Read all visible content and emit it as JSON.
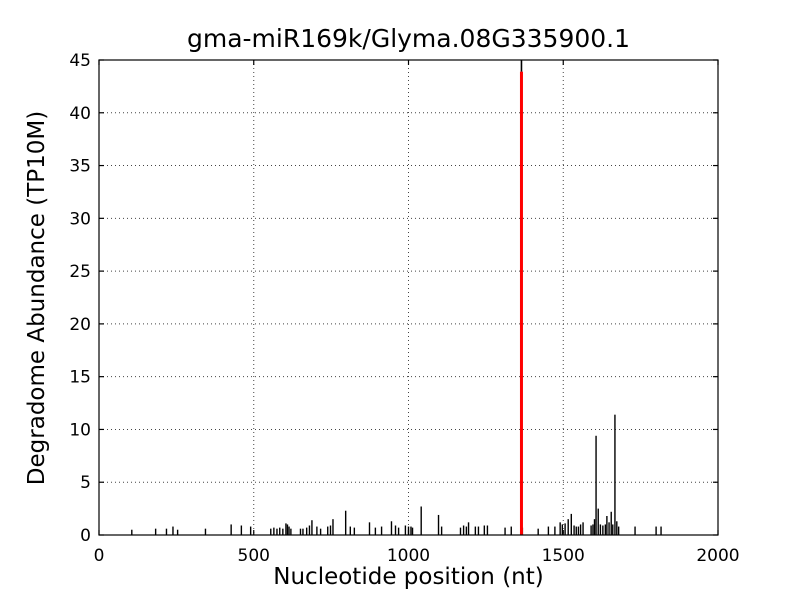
{
  "chart_data": {
    "type": "bar",
    "title": "gma-miR169k/Glyma.08G335900.1",
    "xlabel": "Nucleotide position (nt)",
    "ylabel": "Degradome Abundance (TP10M)",
    "xlim": [
      0,
      2000
    ],
    "ylim": [
      0,
      45
    ],
    "xticks": [
      0,
      500,
      1000,
      1500,
      2000
    ],
    "yticks": [
      0,
      5,
      10,
      15,
      20,
      25,
      30,
      35,
      40,
      45
    ],
    "grid": {
      "on": true,
      "style": "dotted",
      "color": "#444444",
      "x_at": [
        500,
        1000,
        1500
      ],
      "y_at": [
        5,
        10,
        15,
        20,
        25,
        30,
        35,
        40
      ]
    },
    "colors": {
      "spikes": "#000000",
      "cleavage_line": "#ff0000",
      "axis": "#000000",
      "background": "#ffffff"
    },
    "series": [
      {
        "name": "degradome-abundance-peaks",
        "type": "stem",
        "color": "#000000",
        "points": [
          [
            106,
            0.5
          ],
          [
            183,
            0.6
          ],
          [
            218,
            0.6
          ],
          [
            239,
            0.8
          ],
          [
            254,
            0.5
          ],
          [
            344,
            0.6
          ],
          [
            427,
            1.0
          ],
          [
            460,
            0.9
          ],
          [
            490,
            0.8
          ],
          [
            555,
            0.6
          ],
          [
            565,
            0.7
          ],
          [
            575,
            0.6
          ],
          [
            584,
            0.7
          ],
          [
            594,
            0.6
          ],
          [
            604,
            1.1
          ],
          [
            609,
            1.0
          ],
          [
            614,
            0.8
          ],
          [
            620,
            0.6
          ],
          [
            651,
            0.6
          ],
          [
            659,
            0.6
          ],
          [
            671,
            0.7
          ],
          [
            680,
            0.9
          ],
          [
            688,
            1.4
          ],
          [
            704,
            0.8
          ],
          [
            716,
            0.6
          ],
          [
            739,
            0.8
          ],
          [
            748,
            0.9
          ],
          [
            756,
            1.5
          ],
          [
            797,
            2.3
          ],
          [
            812,
            0.8
          ],
          [
            825,
            0.7
          ],
          [
            874,
            1.2
          ],
          [
            893,
            0.7
          ],
          [
            913,
            0.8
          ],
          [
            945,
            1.3
          ],
          [
            958,
            0.9
          ],
          [
            968,
            0.7
          ],
          [
            990,
            0.9
          ],
          [
            1000,
            0.8
          ],
          [
            1008,
            0.8
          ],
          [
            1013,
            0.7
          ],
          [
            1041,
            2.7
          ],
          [
            1097,
            1.9
          ],
          [
            1107,
            0.8
          ],
          [
            1168,
            0.7
          ],
          [
            1178,
            0.9
          ],
          [
            1187,
            0.8
          ],
          [
            1194,
            1.2
          ],
          [
            1216,
            0.8
          ],
          [
            1226,
            0.8
          ],
          [
            1245,
            0.9
          ],
          [
            1255,
            0.9
          ],
          [
            1312,
            0.7
          ],
          [
            1332,
            0.8
          ],
          [
            1368,
            0.7
          ],
          [
            1419,
            0.6
          ],
          [
            1452,
            0.8
          ],
          [
            1473,
            0.8
          ],
          [
            1490,
            1.2
          ],
          [
            1497,
            1.0
          ],
          [
            1506,
            1.1
          ],
          [
            1516,
            1.5
          ],
          [
            1526,
            2.0
          ],
          [
            1535,
            0.9
          ],
          [
            1542,
            0.8
          ],
          [
            1549,
            0.8
          ],
          [
            1556,
            1.0
          ],
          [
            1564,
            1.2
          ],
          [
            1590,
            0.9
          ],
          [
            1596,
            1.0
          ],
          [
            1601,
            1.5
          ],
          [
            1606,
            9.4
          ],
          [
            1613,
            2.5
          ],
          [
            1620,
            1.0
          ],
          [
            1628,
            0.9
          ],
          [
            1636,
            1.0
          ],
          [
            1641,
            1.8
          ],
          [
            1648,
            1.2
          ],
          [
            1655,
            2.2
          ],
          [
            1660,
            1.0
          ],
          [
            1667,
            11.4
          ],
          [
            1673,
            1.3
          ],
          [
            1679,
            0.8
          ],
          [
            1732,
            0.8
          ],
          [
            1800,
            0.8
          ],
          [
            1816,
            0.8
          ]
        ]
      },
      {
        "name": "mirna-cleavage-site",
        "type": "vline",
        "color": "#ff0000",
        "x": 1365,
        "height": 43.9,
        "top_cap": {
          "color": "#000000",
          "from": 45,
          "to": 43.9
        }
      }
    ]
  }
}
